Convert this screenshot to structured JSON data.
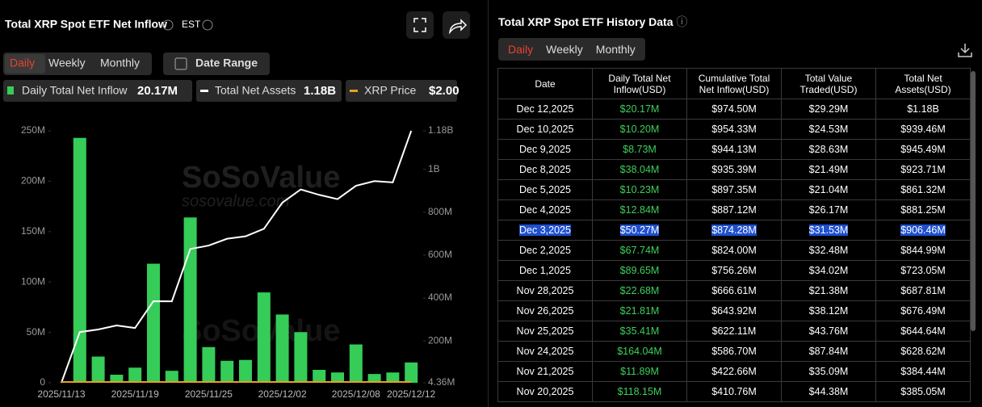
{
  "header": {
    "title": "Total XRP Spot ETF Net Inflow",
    "timezone": "EST",
    "tabs": [
      "Daily",
      "Weekly",
      "Monthly"
    ],
    "active_tab": 0,
    "date_range": "Date Range"
  },
  "chart_data": {
    "type": "bar",
    "categories": [
      "2025/11/13",
      null,
      null,
      null,
      "2025/11/19",
      null,
      null,
      null,
      "2025/11/25",
      null,
      null,
      null,
      "2025/12/02",
      null,
      null,
      null,
      "2025/12/08",
      null,
      null,
      "2025/12/12"
    ],
    "series": [
      {
        "name": "Daily Total Net Inflow",
        "color": "#35cc58",
        "latest_label": "20.17M",
        "values": [
          null,
          243,
          26,
          8,
          15,
          118.15,
          11.89,
          164.04,
          35.41,
          21.81,
          22.68,
          89.65,
          67.74,
          50.27,
          12.84,
          10.23,
          38.04,
          8.73,
          10.2,
          20.17
        ]
      },
      {
        "name": "Total Net Assets",
        "color": "#ffffff",
        "axis": "y2",
        "type": "line",
        "latest_label": "1.18B",
        "values": [
          4.36,
          241,
          253,
          272,
          260,
          385.05,
          384.44,
          628.62,
          644.64,
          676.49,
          687.81,
          723.05,
          844.99,
          906.46,
          881.25,
          861.32,
          923.71,
          945.49,
          939.46,
          1180
        ]
      }
    ],
    "xrp_price": {
      "name": "XRP Price",
      "color": "#e8a020",
      "latest_label": "$2.00"
    },
    "ylim": [
      0,
      250
    ],
    "yticks": [
      0,
      {
        "value": 50,
        "label": "50M"
      },
      {
        "value": 100,
        "label": "100M"
      },
      {
        "value": 150,
        "label": "150M"
      },
      {
        "value": 200,
        "label": "200M"
      },
      {
        "value": 250,
        "label": "250M"
      }
    ],
    "y2lim": [
      4.36,
      1180
    ],
    "y2ticks": [
      {
        "value": 4.36,
        "label": "4.36M"
      },
      {
        "value": 200,
        "label": "200M"
      },
      {
        "value": 400,
        "label": "400M"
      },
      {
        "value": 600,
        "label": "600M"
      },
      {
        "value": 800,
        "label": "800M"
      },
      {
        "value": 1000,
        "label": "1B"
      },
      {
        "value": 1180,
        "label": "1.18B"
      }
    ],
    "watermark": [
      "SoSoValue",
      "sosovalue.com"
    ]
  },
  "history": {
    "title": "Total XRP Spot ETF History Data",
    "tabs": [
      "Daily",
      "Weekly",
      "Monthly"
    ],
    "active_tab": 0,
    "selected_row": 6,
    "columns": [
      "Date",
      "Daily Total Net Inflow(USD)",
      "Cumulative Total Net Inflow(USD)",
      "Total Value Traded(USD)",
      "Total Net Assets(USD)"
    ],
    "rows": [
      [
        "Dec 12,2025",
        "$20.17M",
        "$974.50M",
        "$29.29M",
        "$1.18B"
      ],
      [
        "Dec 10,2025",
        "$10.20M",
        "$954.33M",
        "$24.53M",
        "$939.46M"
      ],
      [
        "Dec 9,2025",
        "$8.73M",
        "$944.13M",
        "$28.63M",
        "$945.49M"
      ],
      [
        "Dec 8,2025",
        "$38.04M",
        "$935.39M",
        "$21.49M",
        "$923.71M"
      ],
      [
        "Dec 5,2025",
        "$10.23M",
        "$897.35M",
        "$21.04M",
        "$861.32M"
      ],
      [
        "Dec 4,2025",
        "$12.84M",
        "$887.12M",
        "$26.17M",
        "$881.25M"
      ],
      [
        "Dec 3,2025",
        "$50.27M",
        "$874.28M",
        "$31.53M",
        "$906.46M"
      ],
      [
        "Dec 2,2025",
        "$67.74M",
        "$824.00M",
        "$32.48M",
        "$844.99M"
      ],
      [
        "Dec 1,2025",
        "$89.65M",
        "$756.26M",
        "$34.02M",
        "$723.05M"
      ],
      [
        "Nov 28,2025",
        "$22.68M",
        "$666.61M",
        "$21.38M",
        "$687.81M"
      ],
      [
        "Nov 26,2025",
        "$21.81M",
        "$643.92M",
        "$38.12M",
        "$676.49M"
      ],
      [
        "Nov 25,2025",
        "$35.41M",
        "$622.11M",
        "$43.76M",
        "$644.64M"
      ],
      [
        "Nov 24,2025",
        "$164.04M",
        "$586.70M",
        "$87.84M",
        "$628.62M"
      ],
      [
        "Nov 21,2025",
        "$11.89M",
        "$422.66M",
        "$35.09M",
        "$384.44M"
      ],
      [
        "Nov 20,2025",
        "$118.15M",
        "$410.76M",
        "$44.38M",
        "$385.05M"
      ]
    ]
  }
}
